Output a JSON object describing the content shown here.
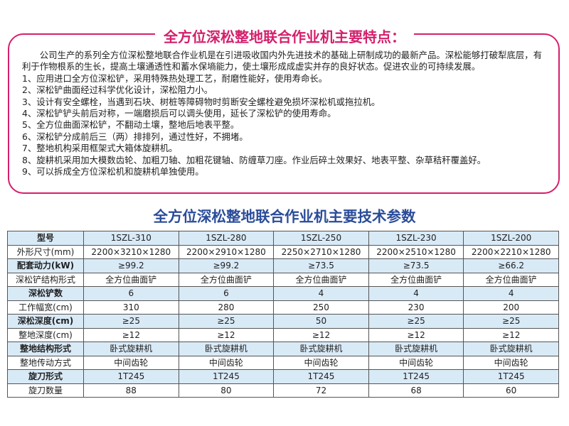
{
  "features": {
    "title": "全方位深松整地联合作业机主要特点：",
    "intro": "公司生产的系列全方位深松整地联合作业机是在引进吸收国内外先进技术的基础上研制成功的最新产品。深松能够打破犁底层，有利于作物根系的生长，提高土壤通透性和蓄水保墒能力，使土壤形成成虚实并存的良好状态。促进农业的可持续发展。",
    "items": [
      "1、应用进口全方位深松铲，采用特殊热处理工艺，耐磨性能好，使用寿命长。",
      "2、深松铲曲面经过科学优化设计，深松阻力小。",
      "3、设计有安全螺栓，当遇到石块、树桩等障碍物时剪断安全螺栓避免损坏深松机或拖拉机。",
      "4、深松铲铲头前后对称，一端磨损后可以调头使用，延长了深松铲的使用寿命。",
      "5、全方位曲面深松铲，不翻动土壤，整地后地表平整。",
      "6、深松铲分成前后三（两）排排列，通过性好，不拥堵。",
      "7、整地机构采用框架式大箱体旋耕机。",
      "8、旋耕机采用加大模数齿轮、加粗刀轴、加粗花键轴、防缠草刀座。作业后碎土效果好、地表平整、杂草秸秆覆盖好。",
      "9、可以拆成全方位深松机和旋耕机单独使用。"
    ]
  },
  "specs": {
    "title": "全方位深松整地联合作业机主要技术参数",
    "rows": [
      [
        "型号",
        "1SZL-310",
        "1SZL-280",
        "1SZL-250",
        "1SZL-230",
        "1SZL-200"
      ],
      [
        "外形尺寸(mm)",
        "2200×3210×1280",
        "2200×2910×1280",
        "2250×2710×1280",
        "2200×2510×1280",
        "2200×2210×1280"
      ],
      [
        "配套动力(kW)",
        "≥99.2",
        "≥99.2",
        "≥73.5",
        "≥73.5",
        "≥66.2"
      ],
      [
        "深松铲结构形式",
        "全方位曲面铲",
        "全方位曲面铲",
        "全方位曲面铲",
        "全方位曲面铲",
        "全方位曲面铲"
      ],
      [
        "深松铲数",
        "6",
        "6",
        "4",
        "4",
        "4"
      ],
      [
        "工作幅宽(cm)",
        "310",
        "280",
        "250",
        "230",
        "200"
      ],
      [
        "深松深度(cm)",
        "≥25",
        "≥25",
        "50",
        "≥25",
        "≥25"
      ],
      [
        "整地深度(cm)",
        "≥12",
        "≥12",
        "≥12",
        "≥12",
        "≥12"
      ],
      [
        "整地结构形式",
        "卧式旋耕机",
        "卧式旋耕机",
        "卧式旋耕机",
        "卧式旋耕机",
        "卧式旋耕机"
      ],
      [
        "整地传动方式",
        "中间齿轮",
        "中间齿轮",
        "中间齿轮",
        "中间齿轮",
        "中间齿轮"
      ],
      [
        "旋刀形式",
        "1T245",
        "1T245",
        "1T245",
        "1T245",
        "1T245"
      ],
      [
        "旋刀数量",
        "88",
        "80",
        "72",
        "68",
        "60"
      ]
    ]
  },
  "colors": {
    "accent_pink": "#d4206c",
    "title_blue": "#2a4c9a",
    "row_tint": "#d9eaf7"
  }
}
